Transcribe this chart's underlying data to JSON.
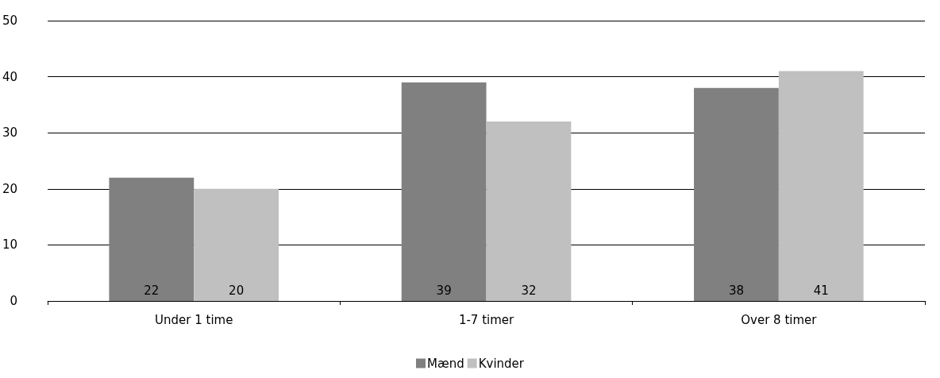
{
  "chart_data": {
    "type": "bar",
    "categories": [
      "Under 1 time",
      "1-7 timer",
      "Over 8 timer"
    ],
    "series": [
      {
        "name": "Mænd",
        "color": "#808080",
        "values": [
          22,
          39,
          38
        ]
      },
      {
        "name": "Kvinder",
        "color": "#c0c0c0",
        "values": [
          20,
          32,
          41
        ]
      }
    ],
    "ylim": [
      0,
      50
    ],
    "yticks": [
      0,
      10,
      20,
      30,
      40,
      50
    ],
    "grid": "y",
    "legend": "bottom",
    "data_labels": true
  }
}
